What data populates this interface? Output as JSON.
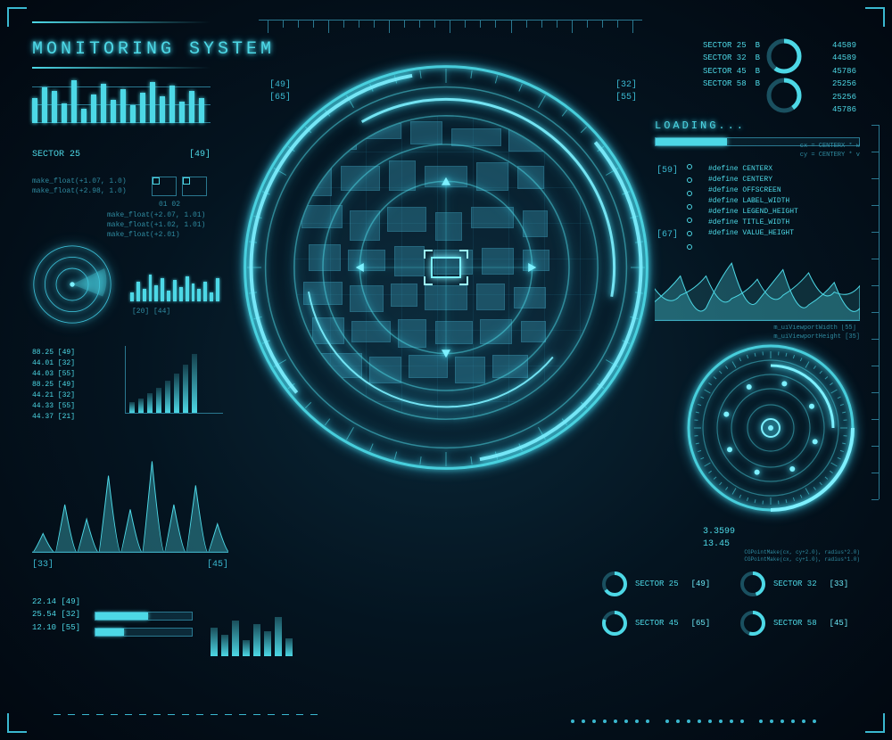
{
  "colors": {
    "bg_center": "#0a2838",
    "bg_outer": "#020810",
    "primary": "#4dd8e6",
    "primary_bright": "#7df0ff",
    "line": "#2a7890",
    "dim": "#3aa8c0"
  },
  "title": "MONITORING SYSTEM",
  "header_side_nums": {
    "left_a": "[49]",
    "left_b": "[65]",
    "right_a": "[32]",
    "right_b": "[55]"
  },
  "bars_top_left": {
    "values": [
      28,
      40,
      36,
      22,
      48,
      16,
      32,
      44,
      26,
      38,
      20,
      34,
      46,
      30,
      42,
      24,
      36,
      28
    ],
    "label": "SECTOR 25",
    "value_label": "[49]",
    "hlines": [
      10,
      30,
      50
    ]
  },
  "code_left_a": "make_float(+1.07, 1.0)\nmake_float(+2.98, 1.0)",
  "code_left_b": "01   02",
  "code_left_c": "make_float(+2.07, 1.01)\nmake_float(+1.02, 1.01)\nmake_float(+2.01)",
  "mini_radar": {
    "rings": 3
  },
  "mini_bars": [
    10,
    22,
    14,
    30,
    18,
    26,
    12,
    24,
    16,
    28,
    20,
    14,
    22,
    10,
    26
  ],
  "mini_bars_labels": "[20] [44]",
  "datalist": [
    "88.25 [49]",
    "44.01 [32]",
    "44.03 [55]",
    "88.25 [49]",
    "44.21 [32]",
    "44.33 [55]",
    "44.37 [21]"
  ],
  "growbars": [
    12,
    16,
    22,
    28,
    36,
    44,
    54,
    66
  ],
  "wave_chart": {
    "peaks": [
      0.2,
      0.5,
      0.35,
      0.8,
      0.45,
      0.95,
      0.5,
      0.7,
      0.3
    ],
    "color": "#4dd8e6",
    "label_a": "[33]",
    "label_b": "[45]"
  },
  "bottom_left_nums": [
    "22.14 [49]",
    "25.54 [32]",
    "12.10 [55]"
  ],
  "progress_bars": [
    {
      "fill": 0.55
    },
    {
      "fill": 0.3
    }
  ],
  "vu_meters": [
    32,
    24,
    40,
    18,
    36,
    28,
    44,
    20
  ],
  "radar": {
    "rings": [
      0.98,
      0.88,
      0.74,
      0.6,
      0.42
    ],
    "ring_color": "#4dd8e6",
    "arcs": [
      {
        "r": 0.95,
        "start": -40,
        "end": 80,
        "w": 4
      },
      {
        "r": 0.95,
        "start": 140,
        "end": 260,
        "w": 4
      },
      {
        "r": 0.82,
        "start": -120,
        "end": 10,
        "w": 3
      },
      {
        "r": 0.68,
        "start": 40,
        "end": 170,
        "w": 2
      }
    ],
    "ticks": 48
  },
  "buildings": [
    [
      20,
      10,
      50,
      28
    ],
    [
      80,
      8,
      40,
      18
    ],
    [
      130,
      6,
      36,
      26
    ],
    [
      176,
      14,
      56,
      20
    ],
    [
      240,
      10,
      40,
      30
    ],
    [
      12,
      50,
      30,
      40
    ],
    [
      52,
      56,
      44,
      28
    ],
    [
      106,
      50,
      30,
      34
    ],
    [
      146,
      56,
      48,
      24
    ],
    [
      204,
      52,
      36,
      32
    ],
    [
      250,
      56,
      30,
      26
    ],
    [
      8,
      100,
      46,
      26
    ],
    [
      62,
      106,
      34,
      34
    ],
    [
      104,
      102,
      44,
      28
    ],
    [
      158,
      108,
      30,
      32
    ],
    [
      198,
      102,
      48,
      24
    ],
    [
      256,
      106,
      28,
      30
    ],
    [
      16,
      144,
      36,
      30
    ],
    [
      60,
      150,
      42,
      24
    ],
    [
      112,
      146,
      34,
      34
    ],
    [
      156,
      150,
      44,
      28
    ],
    [
      210,
      148,
      36,
      30
    ],
    [
      256,
      150,
      30,
      24
    ],
    [
      10,
      186,
      44,
      26
    ],
    [
      62,
      190,
      38,
      30
    ],
    [
      108,
      188,
      30,
      26
    ],
    [
      146,
      190,
      48,
      28
    ],
    [
      204,
      188,
      32,
      30
    ],
    [
      246,
      192,
      36,
      24
    ],
    [
      20,
      226,
      36,
      30
    ],
    [
      64,
      230,
      44,
      24
    ],
    [
      116,
      228,
      32,
      32
    ],
    [
      158,
      230,
      42,
      26
    ],
    [
      208,
      228,
      36,
      28
    ],
    [
      254,
      230,
      28,
      24
    ],
    [
      30,
      266,
      46,
      28
    ],
    [
      84,
      270,
      36,
      30
    ],
    [
      128,
      268,
      44,
      26
    ],
    [
      180,
      270,
      34,
      30
    ],
    [
      222,
      268,
      40,
      26
    ]
  ],
  "right_sectors": {
    "rows": [
      {
        "label": "SECTOR 25",
        "val": "B"
      },
      {
        "label": "SECTOR 32",
        "val": "B"
      },
      {
        "label": "SECTOR 45",
        "val": "B"
      },
      {
        "label": "SECTOR 58",
        "val": "B"
      }
    ],
    "donuts": [
      0.6,
      0.4
    ]
  },
  "right_numbers": [
    "44589",
    "44589",
    "45786",
    "25256",
    "25256",
    "45786"
  ],
  "loading": {
    "label": "LOADING...",
    "progress": 0.35
  },
  "right_small_text": "cx = CENTERX * w\ncy = CENTERY * v",
  "defines": [
    "#define CENTERX",
    "#define CENTERY",
    "#define OFFSCREEN",
    "#define LABEL_WIDTH",
    "#define LEGEND_HEIGHT",
    "#define TITLE_WIDTH",
    "#define VALUE_HEIGHT"
  ],
  "side_nums": [
    "[59]",
    "[67]"
  ],
  "wave_right": {
    "series_a": [
      0.3,
      0.7,
      0.2,
      0.9,
      0.3,
      0.8,
      0.25,
      0.6,
      0.2
    ],
    "series_b": [
      0.5,
      0.4,
      0.7,
      0.35,
      0.65,
      0.4,
      0.75,
      0.45,
      0.55
    ],
    "labels": "m_uiViewportWidth [55]\nm_uiViewportHeight [35]"
  },
  "big_radial": {
    "rings": 5,
    "ticks": 60,
    "dots": 8
  },
  "br_nums": "3.3599\n13.45",
  "br_small": "CGPointMake(cx, cy+2.0), radius*2.0)\nCGPointMake(cx, cy+1.0), radius*1.0)",
  "sector_donuts": [
    {
      "label": "SECTOR 25",
      "val": "[49]",
      "fill": 0.65
    },
    {
      "label": "SECTOR 32",
      "val": "[33]",
      "fill": 0.45
    },
    {
      "label": "SECTOR 45",
      "val": "[65]",
      "fill": 0.8
    },
    {
      "label": "SECTOR 58",
      "val": "[45]",
      "fill": 0.55
    }
  ]
}
